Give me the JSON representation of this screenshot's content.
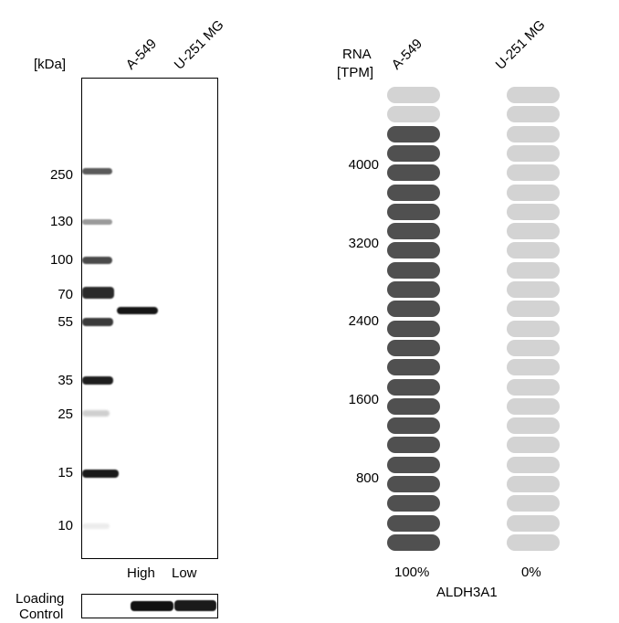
{
  "western_blot": {
    "unit_label": "[kDa]",
    "lane_labels": [
      "A-549",
      "U-251 MG"
    ],
    "markers": [
      "250",
      "130",
      "100",
      "70",
      "55",
      "35",
      "25",
      "15",
      "10"
    ],
    "expression_labels": [
      "High",
      "Low"
    ],
    "loading_control_label_line1": "Loading",
    "loading_control_label_line2": "Control"
  },
  "rna": {
    "header_line1": "RNA",
    "header_line2": "[TPM]",
    "cell_lines": [
      "A-549",
      "U-251 MG"
    ],
    "scale_ticks": [
      "4000",
      "3200",
      "2400",
      "1600",
      "800"
    ],
    "percent_labels": [
      "100%",
      "0%"
    ],
    "gene": "ALDH3A1",
    "a549_filled_segments": 22,
    "u251_filled_segments": 0,
    "total_segments": 24,
    "colors": {
      "filled": "#505050",
      "empty": "#d3d3d3"
    }
  }
}
